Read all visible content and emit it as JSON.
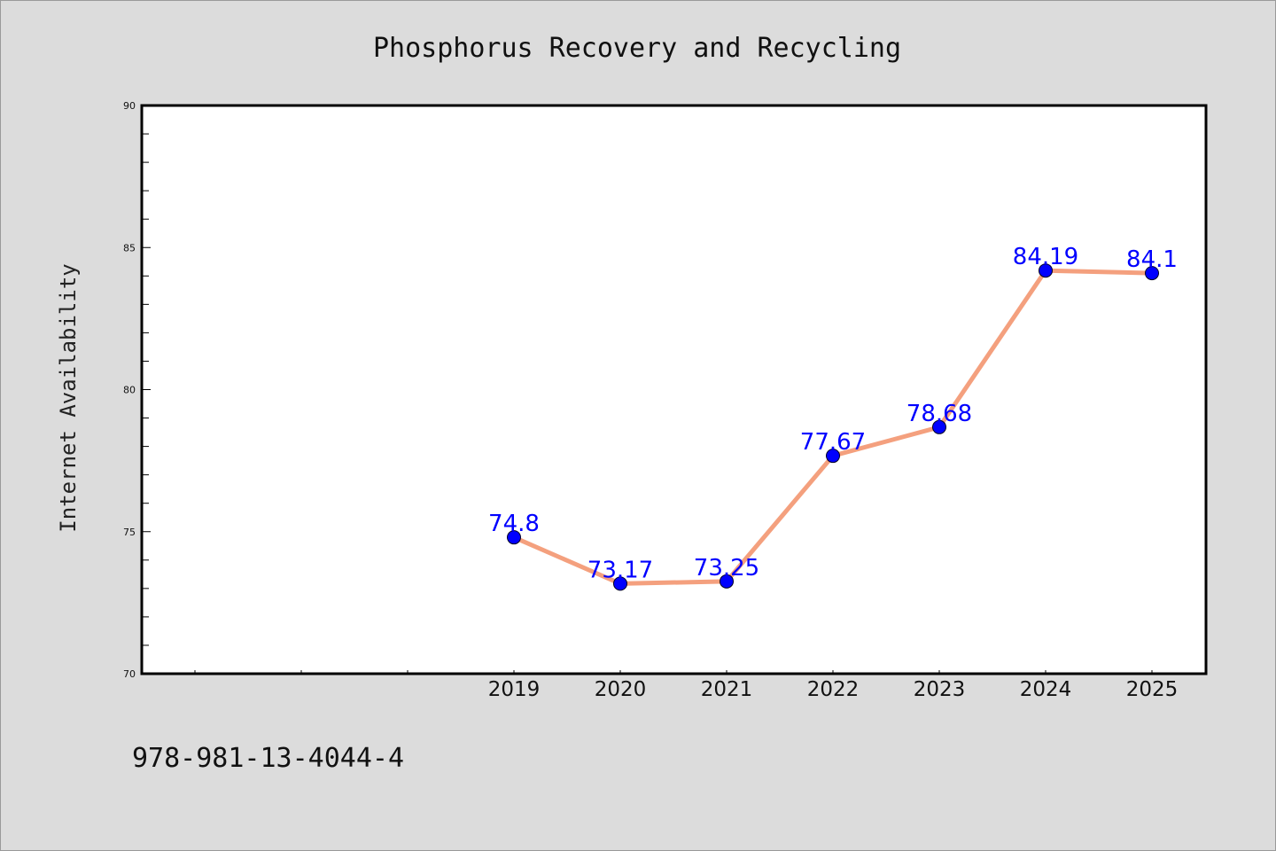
{
  "chart_data": {
    "type": "line",
    "title": "Phosphorus Recovery and Recycling",
    "xlabel": "",
    "ylabel": "Internet Availability",
    "categories": [
      "2019",
      "2020",
      "2021",
      "2022",
      "2023",
      "2024",
      "2025"
    ],
    "series": [
      {
        "values": [
          74.8,
          73.17,
          73.25,
          77.67,
          78.68,
          84.19,
          84.1
        ],
        "line_color": "#f4a07e",
        "marker_color": "#0000ff"
      }
    ],
    "point_labels": [
      "74.8",
      "73.17",
      "73.25",
      "77.67",
      "78.68",
      "84.19",
      "84.1"
    ],
    "ylim": [
      70,
      90
    ],
    "yticks": [
      "70",
      "75",
      "80",
      "85",
      "90"
    ],
    "grid": false,
    "background_color": "#dcdcdc",
    "plot_background_color": "#ffffff"
  },
  "footer": {
    "code": "978-981-13-4044-4"
  }
}
